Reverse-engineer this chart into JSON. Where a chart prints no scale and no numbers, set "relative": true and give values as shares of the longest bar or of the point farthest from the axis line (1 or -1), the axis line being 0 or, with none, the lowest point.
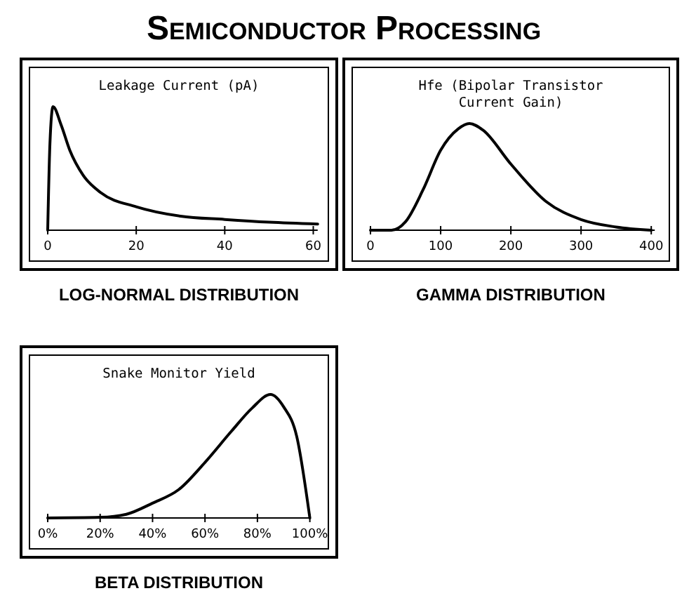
{
  "chart_data": [
    {
      "type": "other",
      "title": "Semiconductor Processing"
    },
    {
      "type": "line",
      "title": "Leakage Current (pA)",
      "xlabel": "LOG-NORMAL DISTRIBUTION",
      "relative": true,
      "tick_labels": "x",
      "color": "#000000",
      "xlim": [
        0,
        61
      ],
      "xticks": [
        0,
        20,
        40,
        60
      ],
      "x": [
        0,
        0.5,
        1.2,
        3,
        5,
        8,
        12,
        20,
        30,
        40,
        50,
        61
      ],
      "values": [
        0,
        0.7,
        1,
        0.855,
        0.646,
        0.445,
        0.304,
        0.19,
        0.114,
        0.087,
        0.065,
        0.05
      ]
    },
    {
      "type": "line",
      "title": "Hfe (Bipolar Transistor Current Gain)",
      "xlabel": "GAMMA DISTRIBUTION",
      "relative": true,
      "tick_labels": "x",
      "color": "#000000",
      "xlim": [
        0,
        405
      ],
      "xticks": [
        0,
        100,
        200,
        300,
        400
      ],
      "x": [
        0,
        30,
        50,
        75,
        100,
        125,
        141,
        160,
        200,
        250,
        300,
        350,
        400
      ],
      "values": [
        0,
        0,
        0.08,
        0.38,
        0.75,
        0.95,
        1,
        0.94,
        0.62,
        0.27,
        0.1,
        0.03,
        0
      ]
    },
    {
      "type": "line",
      "title": "Snake Monitor Yield",
      "xlabel": "BETA DISTRIBUTION",
      "relative": true,
      "tick_labels": "x",
      "color": "#000000",
      "xlim": [
        0,
        100
      ],
      "xticks": [
        {
          "value": 0,
          "label": "0%"
        },
        {
          "value": 20,
          "label": "20%"
        },
        {
          "value": 40,
          "label": "40%"
        },
        {
          "value": 60,
          "label": "60%"
        },
        {
          "value": 80,
          "label": "80%"
        },
        {
          "value": 100,
          "label": "100%"
        }
      ],
      "x": [
        0,
        20,
        30,
        40,
        50,
        60,
        70,
        78,
        85,
        90,
        95,
        100
      ],
      "values": [
        0,
        0.005,
        0.03,
        0.12,
        0.23,
        0.45,
        0.7,
        0.89,
        1,
        0.9,
        0.66,
        0
      ]
    }
  ]
}
